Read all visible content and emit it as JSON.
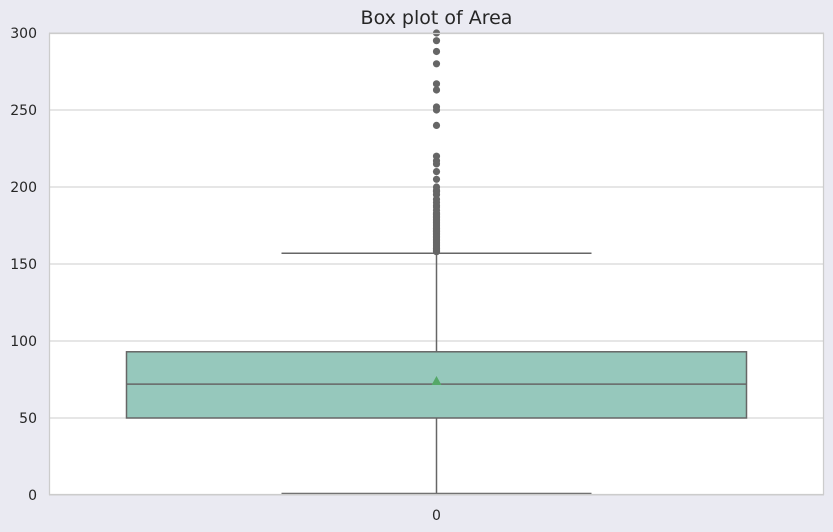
{
  "chart_data": {
    "type": "box",
    "title": "Box plot of Area",
    "xlabel": "",
    "ylabel": "",
    "categories": [
      "0"
    ],
    "y_ticks": [
      0,
      50,
      100,
      150,
      200,
      250,
      300
    ],
    "ylim": [
      0,
      300
    ],
    "grid": true,
    "box": {
      "min": 1,
      "q1": 50,
      "median": 72,
      "mean": 74,
      "q3": 93,
      "max": 157
    },
    "outliers": [
      158,
      159,
      160,
      161,
      162,
      163,
      164,
      165,
      166,
      167,
      168,
      169,
      170,
      171,
      172,
      173,
      174,
      175,
      176,
      177,
      178,
      179,
      180,
      181,
      182,
      183,
      185,
      187,
      188,
      190,
      192,
      195,
      197,
      198,
      200,
      205,
      210,
      215,
      217,
      220,
      240,
      250,
      252,
      263,
      267,
      280,
      288,
      295,
      300
    ],
    "colors": {
      "box_fill": "#96c8bc",
      "lines": "#666666",
      "mean_marker": "#55a868",
      "outlier": "#666666",
      "grid": "#cccccc",
      "plot_bg": "#ffffff",
      "figure_bg": "#eaeaf2"
    }
  }
}
